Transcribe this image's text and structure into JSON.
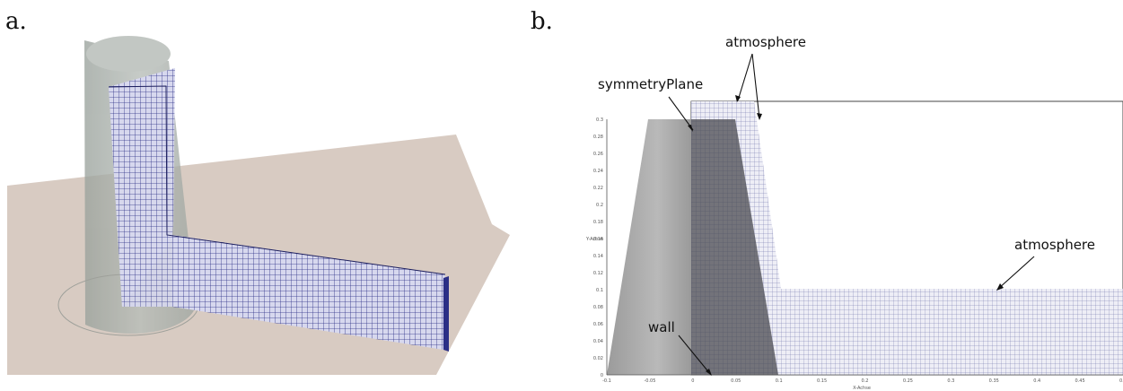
{
  "panels": {
    "a": {
      "label": "a."
    },
    "b": {
      "label": "b."
    }
  },
  "annotations": {
    "symmetry_plane": "symmetryPlane",
    "atmosphere_top": "atmosphere",
    "atmosphere_right": "atmosphere",
    "wall": "wall"
  },
  "axes": {
    "x_label": "X-Achse",
    "y_label": "Y-Achse",
    "x_ticks": [
      "-0.1",
      "-0.05",
      "0",
      "0.05",
      "0.1",
      "0.15",
      "0.2",
      "0.25",
      "0.3",
      "0.35",
      "0.4",
      "0.45",
      "0.5"
    ],
    "y_ticks": [
      "0",
      "0.02",
      "0.04",
      "0.06",
      "0.08",
      "0.1",
      "0.12",
      "0.14",
      "0.16",
      "0.18",
      "0.2",
      "0.22",
      "0.24",
      "0.26",
      "0.28",
      "0.3"
    ]
  },
  "colors": {
    "ground": "#d8cbc2",
    "cone": "#a9b0ab",
    "mesh_line": "#2b2f86",
    "mesh_fill": "#e9e9f3",
    "solid_gray": "#8e8e8e",
    "dark_overlay": "#4a4a50"
  }
}
